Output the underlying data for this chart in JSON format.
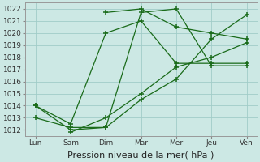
{
  "x_labels": [
    "Lun",
    "Sam",
    "Dim",
    "Mar",
    "Mer",
    "Jeu",
    "Ven"
  ],
  "x_positions": [
    0,
    1,
    2,
    3,
    4,
    5,
    6
  ],
  "lines": [
    [
      1014.0,
      1012.5,
      1020.0,
      1021.0,
      1017.5,
      1017.5,
      1017.5
    ],
    [
      1013.0,
      1012.2,
      1012.2,
      1021.7,
      1022.0,
      1017.3,
      1017.3
    ],
    [
      null,
      null,
      1021.7,
      1022.0,
      1020.5,
      1020.0,
      1019.5
    ],
    [
      1014.0,
      1012.0,
      1012.2,
      1014.5,
      1016.2,
      1019.5,
      1021.5
    ],
    [
      null,
      1011.8,
      1013.0,
      1015.0,
      1017.2,
      1018.0,
      1019.2
    ]
  ],
  "ylim": [
    1011.5,
    1022.5
  ],
  "yticks": [
    1012,
    1013,
    1014,
    1015,
    1016,
    1017,
    1018,
    1019,
    1020,
    1021,
    1022
  ],
  "line_color": "#1a6b1a",
  "bg_color": "#cce8e4",
  "grid_color": "#a0ccc8",
  "xlabel": "Pression niveau de la mer( hPa )",
  "xlabel_fontsize": 8,
  "tick_fontsize": 6.5
}
